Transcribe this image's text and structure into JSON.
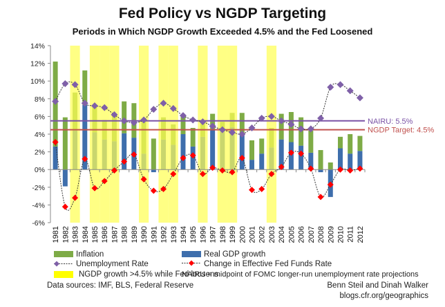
{
  "chart_data": {
    "type": "bar",
    "title": "Fed Policy vs NGDP Targeting",
    "subtitle": "Periods in Which NGDP Growth Exceeded 4.5% and the Fed Loosened",
    "categories": [
      "1981",
      "1982",
      "1983",
      "1984",
      "1985",
      "1986",
      "1987",
      "1988",
      "1989",
      "1990",
      "1991",
      "1992",
      "1993",
      "1994",
      "1995",
      "1996",
      "1997",
      "1998",
      "1999",
      "2000",
      "2001",
      "2002",
      "2003",
      "2004",
      "2005",
      "2006",
      "2007",
      "2008",
      "2009",
      "2010",
      "2011",
      "2012"
    ],
    "ylim": [
      -6,
      14
    ],
    "yticks": [
      "-6%",
      "-4%",
      "-2%",
      "0%",
      "2%",
      "4%",
      "6%",
      "8%",
      "10%",
      "12%",
      "14%"
    ],
    "series": [
      {
        "name": "Inflation",
        "kind": "stacked-bar",
        "color": "#7eab46",
        "values": [
          9.6,
          5.9,
          4.3,
          3.9,
          3.0,
          2.2,
          3.1,
          3.6,
          3.9,
          3.7,
          3.5,
          2.5,
          2.3,
          2.0,
          2.1,
          1.8,
          1.8,
          1.0,
          1.6,
          2.3,
          2.2,
          1.7,
          2.2,
          2.9,
          3.4,
          3.2,
          2.5,
          2.2,
          0.8,
          1.3,
          2.2,
          1.7
        ]
      },
      {
        "name": "Real GDP growth",
        "kind": "bar",
        "color": "#3e6eac",
        "values": [
          2.6,
          -1.9,
          4.4,
          7.3,
          4.2,
          3.4,
          3.2,
          4.1,
          3.6,
          1.8,
          -0.3,
          3.4,
          2.8,
          4.0,
          2.6,
          3.7,
          4.5,
          4.4,
          4.8,
          4.1,
          1.1,
          1.8,
          2.5,
          3.4,
          3.1,
          2.7,
          1.9,
          -0.3,
          -3.1,
          2.4,
          1.8,
          2.1
        ]
      },
      {
        "name": "Unemployment Rate",
        "kind": "line",
        "color": "#7f60a8",
        "values": [
          7.7,
          9.7,
          9.6,
          7.5,
          7.2,
          7.0,
          6.2,
          5.5,
          5.3,
          5.6,
          6.8,
          7.5,
          6.9,
          6.1,
          5.6,
          5.4,
          4.9,
          4.5,
          4.2,
          4.0,
          4.7,
          5.8,
          6.0,
          5.5,
          5.1,
          4.6,
          4.6,
          5.8,
          9.3,
          9.6,
          8.9,
          8.1
        ]
      },
      {
        "name": "Change in Effective Fed Funds Rate",
        "kind": "line",
        "color": "#ff0000",
        "values": [
          3.1,
          -4.2,
          -3.2,
          1.2,
          -2.1,
          -1.3,
          -0.1,
          0.9,
          1.7,
          -1.1,
          -2.4,
          -2.2,
          -0.5,
          1.3,
          1.6,
          -0.5,
          0.2,
          -0.1,
          -0.3,
          1.3,
          -2.3,
          -2.2,
          -0.5,
          0.3,
          1.9,
          1.8,
          0.1,
          -3.1,
          -1.7,
          0.0,
          -0.1,
          0.1
        ]
      }
    ],
    "shaded_years": [
      "1983",
      "1985",
      "1986",
      "1987",
      "1990",
      "1992",
      "1993",
      "1996",
      "1998",
      "1999",
      "2003"
    ],
    "shade_label": "NGDP growth >4.5% while Fed loosens",
    "shade_color": "#ffff55",
    "reference_lines": [
      {
        "label": "NAIRU: 5.5%",
        "value": 5.5,
        "color": "#7a52a6"
      },
      {
        "label": "NGDP Target: 4.5%",
        "value": 4.5,
        "color": "#c0504d"
      }
    ],
    "legend_placement": "bottom",
    "grid": false
  },
  "notes": {
    "nairu": "NAIRU = midpoint of FOMC longer-run unemployment rate projections",
    "sources": "Data sources: IMF, BLS, Federal Reserve",
    "authors": "Benn Steil and Dinah Walker",
    "site": "blogs.cfr.org/geographics"
  }
}
